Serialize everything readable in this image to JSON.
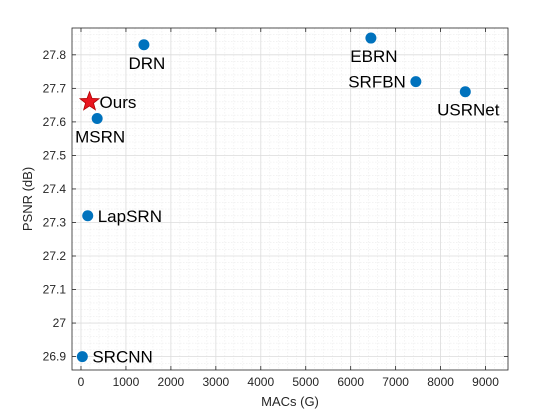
{
  "chart_data": {
    "type": "scatter",
    "title": "",
    "xlabel": "MACs (G)",
    "ylabel": "PSNR (dB)",
    "xlim": [
      -200,
      9500
    ],
    "ylim": [
      26.86,
      27.88
    ],
    "xticks": [
      0,
      1000,
      2000,
      3000,
      4000,
      5000,
      6000,
      7000,
      8000,
      9000
    ],
    "yticks": [
      26.9,
      27,
      27.1,
      27.2,
      27.3,
      27.4,
      27.5,
      27.6,
      27.7,
      27.8
    ],
    "xtick_labels": [
      "0",
      "1000",
      "2000",
      "3000",
      "4000",
      "5000",
      "6000",
      "7000",
      "8000",
      "9000"
    ],
    "ytick_labels": [
      "26.9",
      "27",
      "27.1",
      "27.2",
      "27.3",
      "27.4",
      "27.5",
      "27.6",
      "27.7",
      "27.8"
    ],
    "grid": true,
    "minor_grid": true,
    "colors": {
      "marker": "#0072BD",
      "ours_marker": "#E8141E",
      "ours_edge": "#B00000",
      "axes": "#262626",
      "grid_major": "#dcdcdc",
      "grid_minor": "#ececec"
    },
    "points": [
      {
        "label": "SRCNN",
        "x": 30,
        "y": 26.9,
        "marker": "circle",
        "label_pos": "right"
      },
      {
        "label": "LapSRN",
        "x": 150,
        "y": 27.32,
        "marker": "circle",
        "label_pos": "right"
      },
      {
        "label": "MSRN",
        "x": 360,
        "y": 27.61,
        "marker": "circle",
        "label_pos": "below"
      },
      {
        "label": "Ours",
        "x": 190,
        "y": 27.66,
        "marker": "star",
        "label_pos": "right"
      },
      {
        "label": "DRN",
        "x": 1400,
        "y": 27.83,
        "marker": "circle",
        "label_pos": "below"
      },
      {
        "label": "EBRN",
        "x": 6450,
        "y": 27.85,
        "marker": "circle",
        "label_pos": "below"
      },
      {
        "label": "SRFBN",
        "x": 7450,
        "y": 27.72,
        "marker": "circle",
        "label_pos": "left"
      },
      {
        "label": "USRNet",
        "x": 8550,
        "y": 27.69,
        "marker": "circle",
        "label_pos": "below"
      }
    ]
  }
}
